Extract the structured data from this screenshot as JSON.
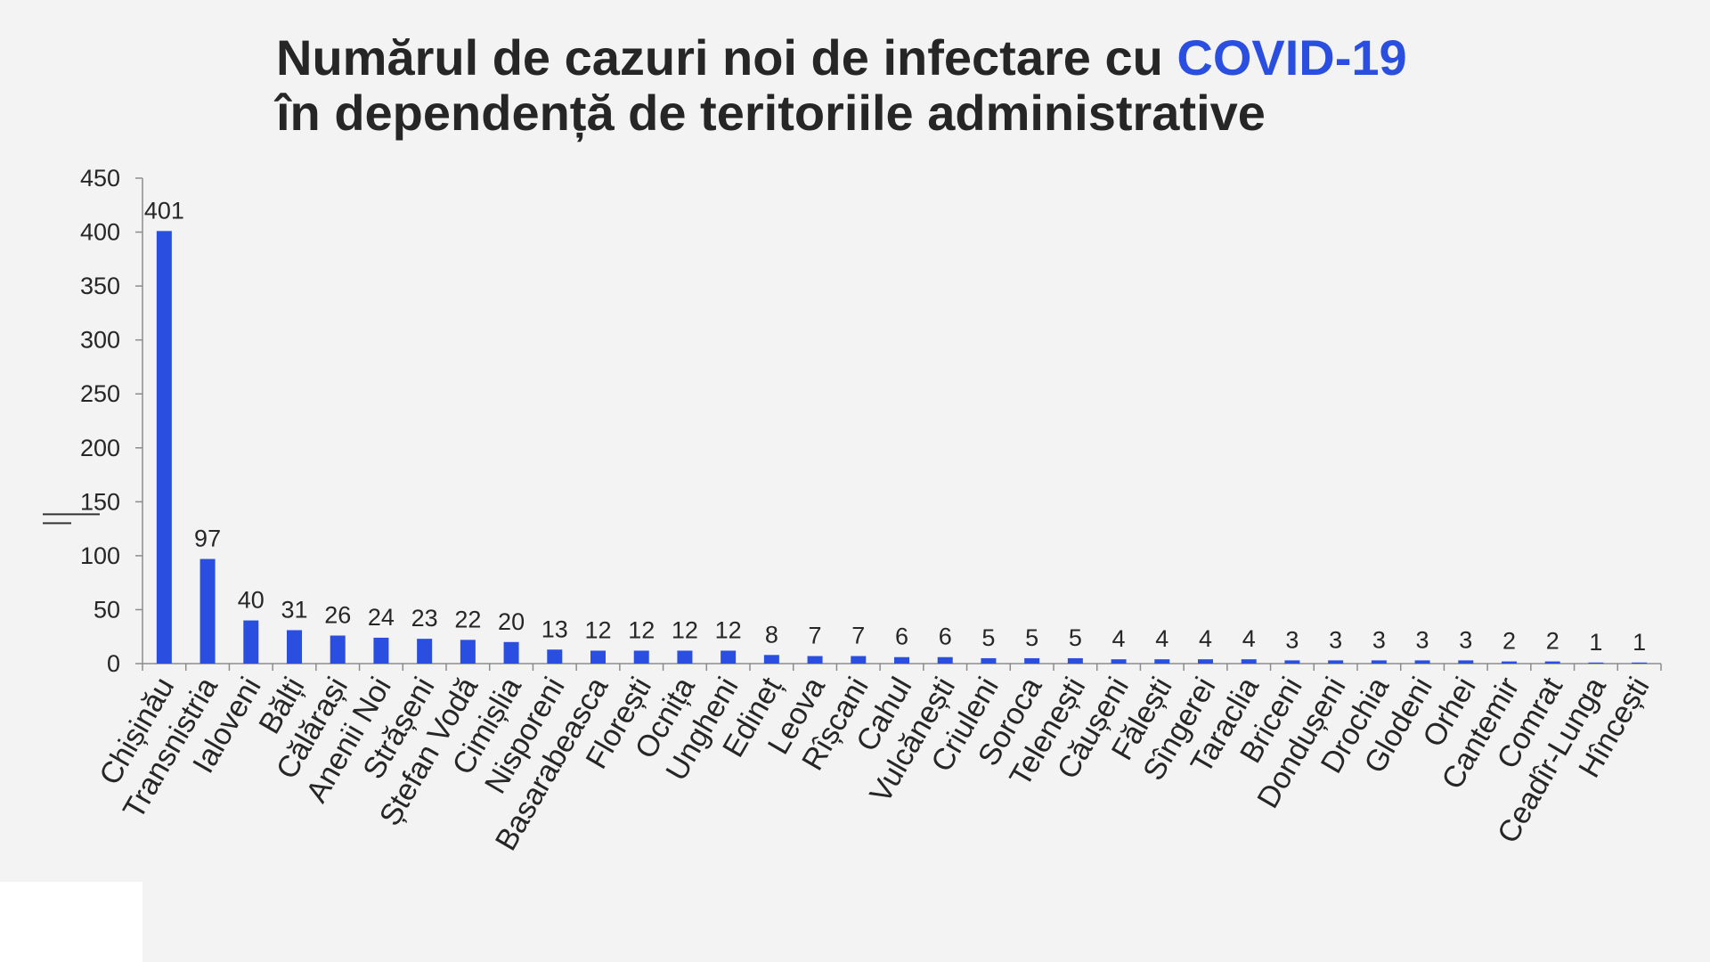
{
  "title": {
    "line1_prefix": "Numărul de cazuri noi de infectare cu ",
    "line1_accent": "COVID-19",
    "line2": "în dependență de teritoriile administrative"
  },
  "colors": {
    "bar": "#2a4fe0",
    "accent": "#2a4fe0",
    "text": "#262626",
    "axis": "#8c8c8c",
    "background": "#f3f3f3"
  },
  "chart_data": {
    "type": "bar",
    "categories": [
      "Chișinău",
      "Transnistria",
      "Ialoveni",
      "Bălți",
      "Călărași",
      "Anenii Noi",
      "Strășeni",
      "Ștefan Vodă",
      "Cimișlia",
      "Nisporeni",
      "Basarabeasca",
      "Florești",
      "Ocnița",
      "Ungheni",
      "Edineț",
      "Leova",
      "Rîșcani",
      "Cahul",
      "Vulcănești",
      "Criuleni",
      "Soroca",
      "Telenești",
      "Căușeni",
      "Fălești",
      "Sîngerei",
      "Taraclia",
      "Briceni",
      "Dondușeni",
      "Drochia",
      "Glodeni",
      "Orhei",
      "Cantemir",
      "Comrat",
      "Ceadîr-Lunga",
      "Hîncești"
    ],
    "values": [
      401,
      97,
      40,
      31,
      26,
      24,
      23,
      22,
      20,
      13,
      12,
      12,
      12,
      12,
      8,
      7,
      7,
      6,
      6,
      5,
      5,
      5,
      4,
      4,
      4,
      4,
      3,
      3,
      3,
      3,
      3,
      2,
      2,
      1,
      1
    ],
    "ylim": [
      0,
      450
    ],
    "yticks": [
      0,
      50,
      100,
      150,
      200,
      250,
      300,
      350,
      400,
      450
    ],
    "data_labels": true,
    "grid": false,
    "legend": "none"
  }
}
